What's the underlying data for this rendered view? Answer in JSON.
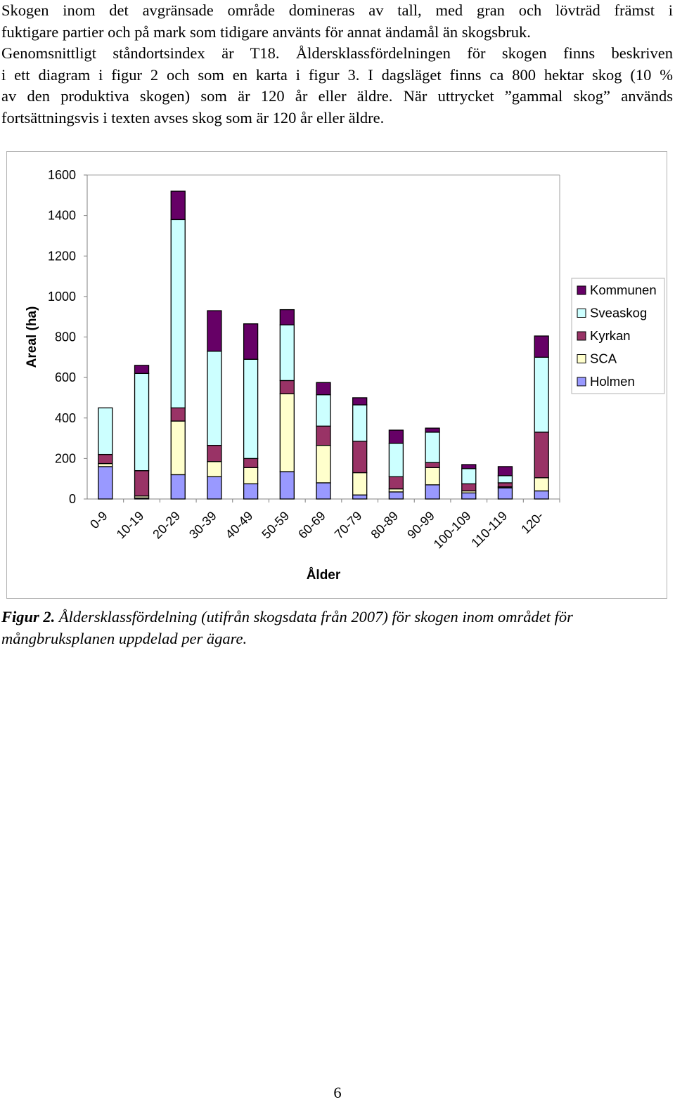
{
  "body_text": {
    "lines": [
      "Skogen inom det avgränsade område domineras av tall, med gran och lövträd främst i",
      "fuktigare partier och på mark som tidigare använts för annat ändamål än skogsbruk.",
      "Genomsnittligt ståndortsindex är T18. Åldersklassfördelningen för skogen finns beskriven",
      "i ett diagram i figur 2 och som en karta i figur 3. I dagsläget finns ca 800 hektar skog (10 %",
      "av den produktiva skogen) som är 120 år eller äldre. När uttrycket ”gammal skog” används",
      "fortsättningsvis i texten avses skog som är 120 år eller äldre."
    ]
  },
  "chart_data": {
    "type": "bar",
    "stacked": true,
    "xlabel": "Ålder",
    "ylabel": "Areal (ha)",
    "ylim": [
      0,
      1600
    ],
    "yticks": [
      0,
      200,
      400,
      600,
      800,
      1000,
      1200,
      1400,
      1600
    ],
    "grid": false,
    "legend_position": "right",
    "categories": [
      "0-9",
      "10-19",
      "20-29",
      "30-39",
      "40-49",
      "50-59",
      "60-69",
      "70-79",
      "80-89",
      "90-99",
      "100-109",
      "110-119",
      "120-"
    ],
    "series": [
      {
        "name": "Holmen",
        "color": "#9999ff",
        "values": [
          160,
          5,
          120,
          110,
          75,
          135,
          80,
          20,
          35,
          70,
          30,
          55,
          40
        ]
      },
      {
        "name": "SCA",
        "color": "#ffffcc",
        "values": [
          15,
          10,
          265,
          75,
          80,
          385,
          185,
          110,
          15,
          85,
          10,
          5,
          65
        ]
      },
      {
        "name": "Kyrkan",
        "color": "#993366",
        "values": [
          45,
          125,
          65,
          80,
          45,
          65,
          95,
          155,
          60,
          25,
          35,
          20,
          225
        ]
      },
      {
        "name": "Sveaskog",
        "color": "#ccffff",
        "values": [
          230,
          480,
          930,
          465,
          490,
          275,
          155,
          180,
          165,
          150,
          75,
          35,
          370
        ]
      },
      {
        "name": "Kommunen",
        "color": "#660066",
        "values": [
          0,
          40,
          140,
          200,
          175,
          75,
          60,
          35,
          65,
          20,
          20,
          45,
          105
        ]
      }
    ],
    "legend_order": [
      "Kommunen",
      "Sveaskog",
      "Kyrkan",
      "SCA",
      "Holmen"
    ]
  },
  "caption": {
    "label": "Figur 2.",
    "text_line1": " Åldersklassfördelning (utifrån skogsdata från 2007) för skogen inom området för",
    "text_line2": "mångbruksplanen uppdelad per ägare."
  },
  "page_number": "6"
}
